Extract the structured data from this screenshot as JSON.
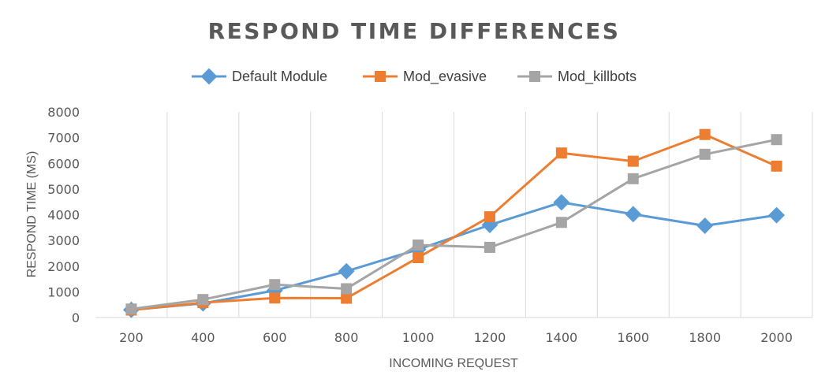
{
  "chart_data": {
    "type": "line",
    "title": "RESPOND TIME DIFFERENCES",
    "xlabel": "INCOMING REQUEST",
    "ylabel": "RESPOND TIME (MS)",
    "categories": [
      "200",
      "400",
      "600",
      "800",
      "1000",
      "1200",
      "1400",
      "1600",
      "1800",
      "2000"
    ],
    "ylim": [
      0,
      8000
    ],
    "yticks": [
      "0",
      "1000",
      "2000",
      "3000",
      "4000",
      "5000",
      "6000",
      "7000",
      "8000"
    ],
    "grid": "vertical",
    "legend_position": "top",
    "series": [
      {
        "name": "Default Module",
        "color": "#5B9BD5",
        "marker": "diamond",
        "values": [
          300,
          550,
          1050,
          1800,
          2650,
          3600,
          4480,
          4020,
          3570,
          3980
        ]
      },
      {
        "name": "Mod_evasive",
        "color": "#ED7D31",
        "marker": "square",
        "values": [
          290,
          580,
          760,
          750,
          2330,
          3920,
          6400,
          6080,
          7120,
          5890
        ]
      },
      {
        "name": "Mod_killbots",
        "color": "#A5A5A5",
        "marker": "square",
        "values": [
          330,
          700,
          1280,
          1120,
          2820,
          2730,
          3700,
          5400,
          6350,
          6920
        ]
      }
    ]
  }
}
